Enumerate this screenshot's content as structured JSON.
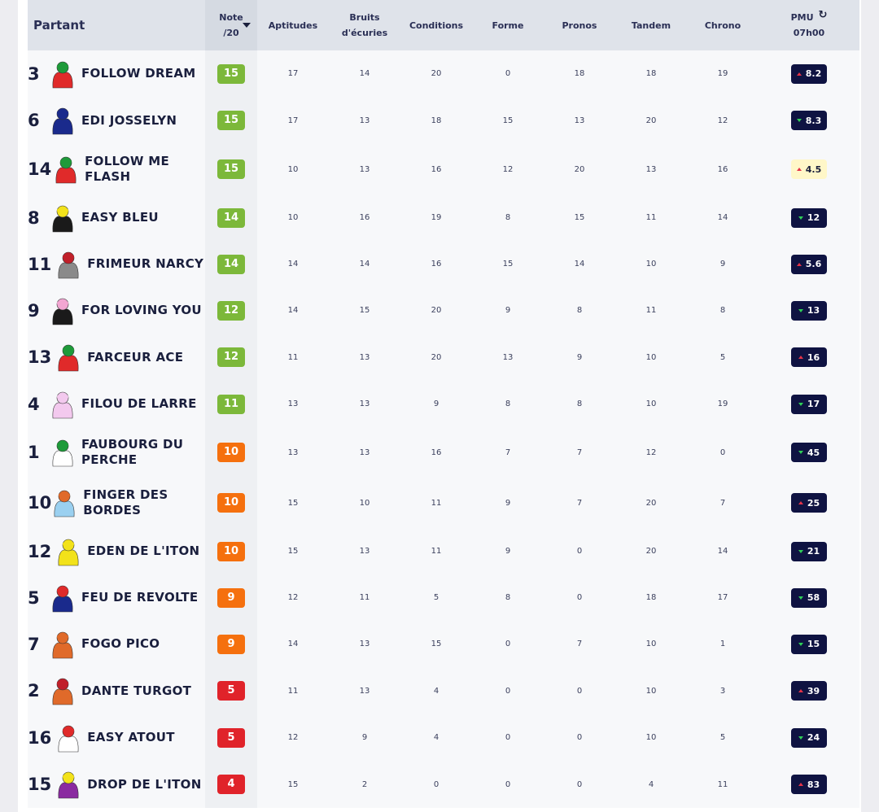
{
  "headers": {
    "partant": "Partant",
    "note_l1": "Note",
    "note_l2": "/20",
    "aptitudes": "Aptitudes",
    "bruits_l1": "Bruits",
    "bruits_l2": "d'écuries",
    "conditions": "Conditions",
    "forme": "Forme",
    "pronos": "Pronos",
    "tandem": "Tandem",
    "chrono": "Chrono",
    "pmu_l1": "PMU",
    "pmu_l2": "07h00"
  },
  "icons": {
    "refresh": "refresh-icon",
    "sort": "sort-desc-icon",
    "odds_up": "arrow-up-icon",
    "odds_down": "arrow-down-icon"
  },
  "colors": {
    "note_high": "#7cb83a",
    "note_mid": "#f5700e",
    "note_low": "#e0232a",
    "odds_bg": "#0f1342",
    "odds_highlight": "#fff7c8",
    "up": "#e53348",
    "down": "#2fcf58"
  },
  "rows": [
    {
      "num": "3",
      "name": "FOLLOW DREAM",
      "note": "15",
      "aptitudes": "17",
      "bruits": "14",
      "conditions": "20",
      "forme": "0",
      "pronos": "18",
      "tandem": "18",
      "chrono": "19",
      "odds": "8.2",
      "trend": "up",
      "jockey_colors": [
        "#1e9a3a",
        "#e02a2a"
      ]
    },
    {
      "num": "6",
      "name": "EDI JOSSELYN",
      "note": "15",
      "aptitudes": "17",
      "bruits": "13",
      "conditions": "18",
      "forme": "15",
      "pronos": "13",
      "tandem": "20",
      "chrono": "12",
      "odds": "8.3",
      "trend": "down",
      "jockey_colors": [
        "#1a2a8c",
        "#1a2a8c"
      ]
    },
    {
      "num": "14",
      "name": "FOLLOW ME FLASH",
      "note": "15",
      "aptitudes": "10",
      "bruits": "13",
      "conditions": "16",
      "forme": "12",
      "pronos": "20",
      "tandem": "13",
      "chrono": "16",
      "odds": "4.5",
      "trend": "up",
      "highlight": true,
      "jockey_colors": [
        "#1e9a3a",
        "#e02a2a"
      ]
    },
    {
      "num": "8",
      "name": "EASY BLEU",
      "note": "14",
      "aptitudes": "10",
      "bruits": "16",
      "conditions": "19",
      "forme": "8",
      "pronos": "15",
      "tandem": "11",
      "chrono": "14",
      "odds": "12",
      "trend": "down",
      "jockey_colors": [
        "#f2e21a",
        "#1a1a1a"
      ]
    },
    {
      "num": "11",
      "name": "FRIMEUR NARCY",
      "note": "14",
      "aptitudes": "14",
      "bruits": "14",
      "conditions": "16",
      "forme": "15",
      "pronos": "14",
      "tandem": "10",
      "chrono": "9",
      "odds": "5.6",
      "trend": "up",
      "jockey_colors": [
        "#c0202a",
        "#8a8a8a"
      ]
    },
    {
      "num": "9",
      "name": "FOR LOVING YOU",
      "note": "12",
      "aptitudes": "14",
      "bruits": "15",
      "conditions": "20",
      "forme": "9",
      "pronos": "8",
      "tandem": "11",
      "chrono": "8",
      "odds": "13",
      "trend": "down",
      "jockey_colors": [
        "#f2a6d2",
        "#1a1a1a"
      ]
    },
    {
      "num": "13",
      "name": "FARCEUR ACE",
      "note": "12",
      "aptitudes": "11",
      "bruits": "13",
      "conditions": "20",
      "forme": "13",
      "pronos": "9",
      "tandem": "10",
      "chrono": "5",
      "odds": "16",
      "trend": "up",
      "jockey_colors": [
        "#1e9a3a",
        "#e02a2a"
      ]
    },
    {
      "num": "4",
      "name": "FILOU DE LARRE",
      "note": "11",
      "aptitudes": "13",
      "bruits": "13",
      "conditions": "9",
      "forme": "8",
      "pronos": "8",
      "tandem": "10",
      "chrono": "19",
      "odds": "17",
      "trend": "down",
      "jockey_colors": [
        "#f3c9ee",
        "#f3c9ee"
      ]
    },
    {
      "num": "1",
      "name": "FAUBOURG DU PERCHE",
      "note": "10",
      "aptitudes": "13",
      "bruits": "13",
      "conditions": "16",
      "forme": "7",
      "pronos": "7",
      "tandem": "12",
      "chrono": "0",
      "odds": "45",
      "trend": "down",
      "jockey_colors": [
        "#1e9a3a",
        "#ffffff"
      ]
    },
    {
      "num": "10",
      "name": "FINGER DES BORDES",
      "note": "10",
      "aptitudes": "15",
      "bruits": "10",
      "conditions": "11",
      "forme": "9",
      "pronos": "7",
      "tandem": "20",
      "chrono": "7",
      "odds": "25",
      "trend": "up",
      "jockey_colors": [
        "#e06a2a",
        "#9ad0f0"
      ]
    },
    {
      "num": "12",
      "name": "EDEN DE L'ITON",
      "note": "10",
      "aptitudes": "15",
      "bruits": "13",
      "conditions": "11",
      "forme": "9",
      "pronos": "0",
      "tandem": "20",
      "chrono": "14",
      "odds": "21",
      "trend": "down",
      "jockey_colors": [
        "#f2e21a",
        "#f2e21a"
      ]
    },
    {
      "num": "5",
      "name": "FEU DE REVOLTE",
      "note": "9",
      "aptitudes": "12",
      "bruits": "11",
      "conditions": "5",
      "forme": "8",
      "pronos": "0",
      "tandem": "18",
      "chrono": "17",
      "odds": "58",
      "trend": "down",
      "jockey_colors": [
        "#e02a2a",
        "#1a2a8c"
      ]
    },
    {
      "num": "7",
      "name": "FOGO PICO",
      "note": "9",
      "aptitudes": "14",
      "bruits": "13",
      "conditions": "15",
      "forme": "0",
      "pronos": "7",
      "tandem": "10",
      "chrono": "1",
      "odds": "15",
      "trend": "down",
      "jockey_colors": [
        "#e06a2a",
        "#e06a2a"
      ]
    },
    {
      "num": "2",
      "name": "DANTE TURGOT",
      "note": "5",
      "aptitudes": "11",
      "bruits": "13",
      "conditions": "4",
      "forme": "0",
      "pronos": "0",
      "tandem": "10",
      "chrono": "3",
      "odds": "39",
      "trend": "up",
      "jockey_colors": [
        "#c0202a",
        "#e06a2a"
      ]
    },
    {
      "num": "16",
      "name": "EASY ATOUT",
      "note": "5",
      "aptitudes": "12",
      "bruits": "9",
      "conditions": "4",
      "forme": "0",
      "pronos": "0",
      "tandem": "10",
      "chrono": "5",
      "odds": "24",
      "trend": "down",
      "jockey_colors": [
        "#e02a2a",
        "#ffffff"
      ]
    },
    {
      "num": "15",
      "name": "DROP DE L'ITON",
      "note": "4",
      "aptitudes": "15",
      "bruits": "2",
      "conditions": "0",
      "forme": "0",
      "pronos": "0",
      "tandem": "4",
      "chrono": "11",
      "odds": "83",
      "trend": "up",
      "jockey_colors": [
        "#f2e21a",
        "#8a2aa0"
      ]
    }
  ]
}
